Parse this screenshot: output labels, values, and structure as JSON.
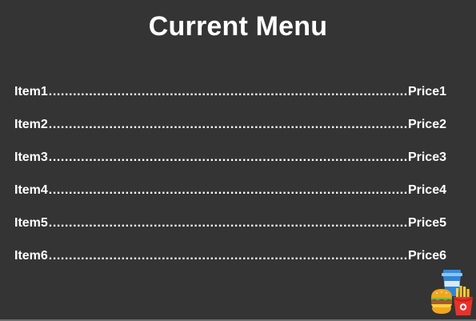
{
  "page": {
    "title": "Current Menu"
  },
  "menu": {
    "items": [
      {
        "name": "Item1",
        "price": "Price1"
      },
      {
        "name": "Item2",
        "price": "Price2"
      },
      {
        "name": "Item3",
        "price": "Price3"
      },
      {
        "name": "Item4",
        "price": "Price4"
      },
      {
        "name": "Item5",
        "price": "Price5"
      },
      {
        "name": "Item6",
        "price": "Price6"
      }
    ]
  },
  "icons": {
    "food": "fast-food-icon"
  },
  "colors": {
    "background": "#343434",
    "text": "#ffffff"
  }
}
